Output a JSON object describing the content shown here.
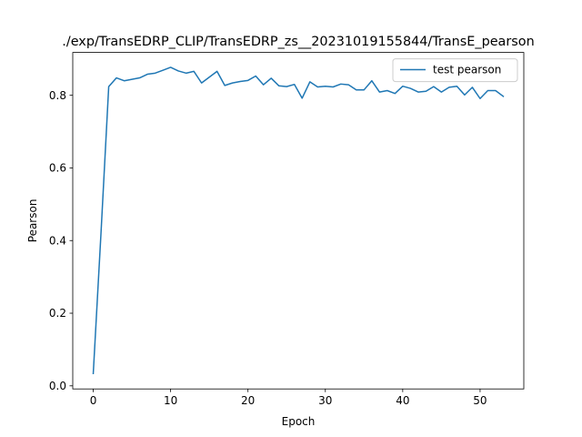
{
  "chart_data": {
    "type": "line",
    "title": "./exp/TransEDRP_CLIP/TransEDRP_zs__20231019155844/TransE_pearson",
    "xlabel": "Epoch",
    "ylabel": "Pearson",
    "xlim": [
      -2.65,
      55.65
    ],
    "ylim": [
      -0.0085,
      0.918
    ],
    "xticks": [
      0,
      10,
      20,
      30,
      40,
      50
    ],
    "yticks": [
      0.0,
      0.2,
      0.4,
      0.6,
      0.8
    ],
    "xtick_labels": [
      "0",
      "10",
      "20",
      "30",
      "40",
      "50"
    ],
    "ytick_labels": [
      "0.0",
      "0.2",
      "0.4",
      "0.6",
      "0.8"
    ],
    "grid": false,
    "legend_position": "upper right",
    "series": [
      {
        "name": "test pearson",
        "color": "#1f77b4",
        "x": [
          0,
          1,
          2,
          3,
          4,
          5,
          6,
          7,
          8,
          9,
          10,
          11,
          12,
          13,
          14,
          15,
          16,
          17,
          18,
          19,
          20,
          21,
          22,
          23,
          24,
          25,
          26,
          27,
          28,
          29,
          30,
          31,
          32,
          33,
          34,
          35,
          36,
          37,
          38,
          39,
          40,
          41,
          42,
          43,
          44,
          45,
          46,
          47,
          48,
          49,
          50,
          51,
          52,
          53
        ],
        "values": [
          0.034,
          0.42,
          0.824,
          0.848,
          0.84,
          0.844,
          0.848,
          0.858,
          0.861,
          0.869,
          0.877,
          0.867,
          0.861,
          0.866,
          0.834,
          0.85,
          0.866,
          0.827,
          0.834,
          0.838,
          0.841,
          0.853,
          0.829,
          0.847,
          0.826,
          0.824,
          0.83,
          0.792,
          0.837,
          0.823,
          0.825,
          0.823,
          0.831,
          0.829,
          0.815,
          0.815,
          0.84,
          0.809,
          0.813,
          0.805,
          0.825,
          0.819,
          0.809,
          0.811,
          0.824,
          0.809,
          0.822,
          0.825,
          0.801,
          0.822,
          0.791,
          0.813,
          0.813,
          0.797
        ]
      }
    ]
  },
  "legend": {
    "items": [
      {
        "label": "test pearson",
        "color": "#1f77b4"
      }
    ]
  }
}
